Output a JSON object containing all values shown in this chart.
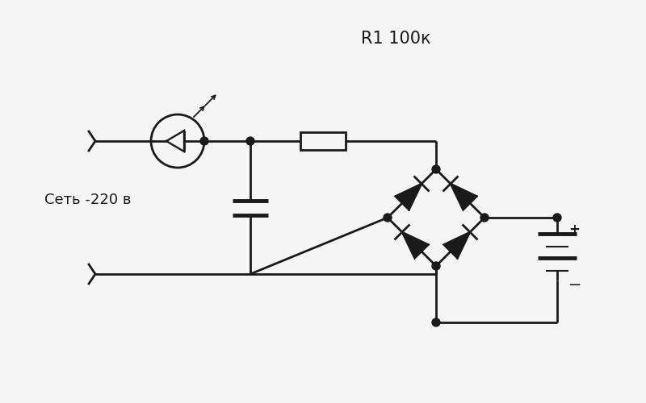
{
  "title": "R1 100к",
  "label_net": "Сеть -220 в",
  "bg_color": "#f5f5f5",
  "line_color": "#1a1a1a",
  "lw": 2.0,
  "fig_w": 8.0,
  "fig_h": 5.0,
  "dpi": 100
}
